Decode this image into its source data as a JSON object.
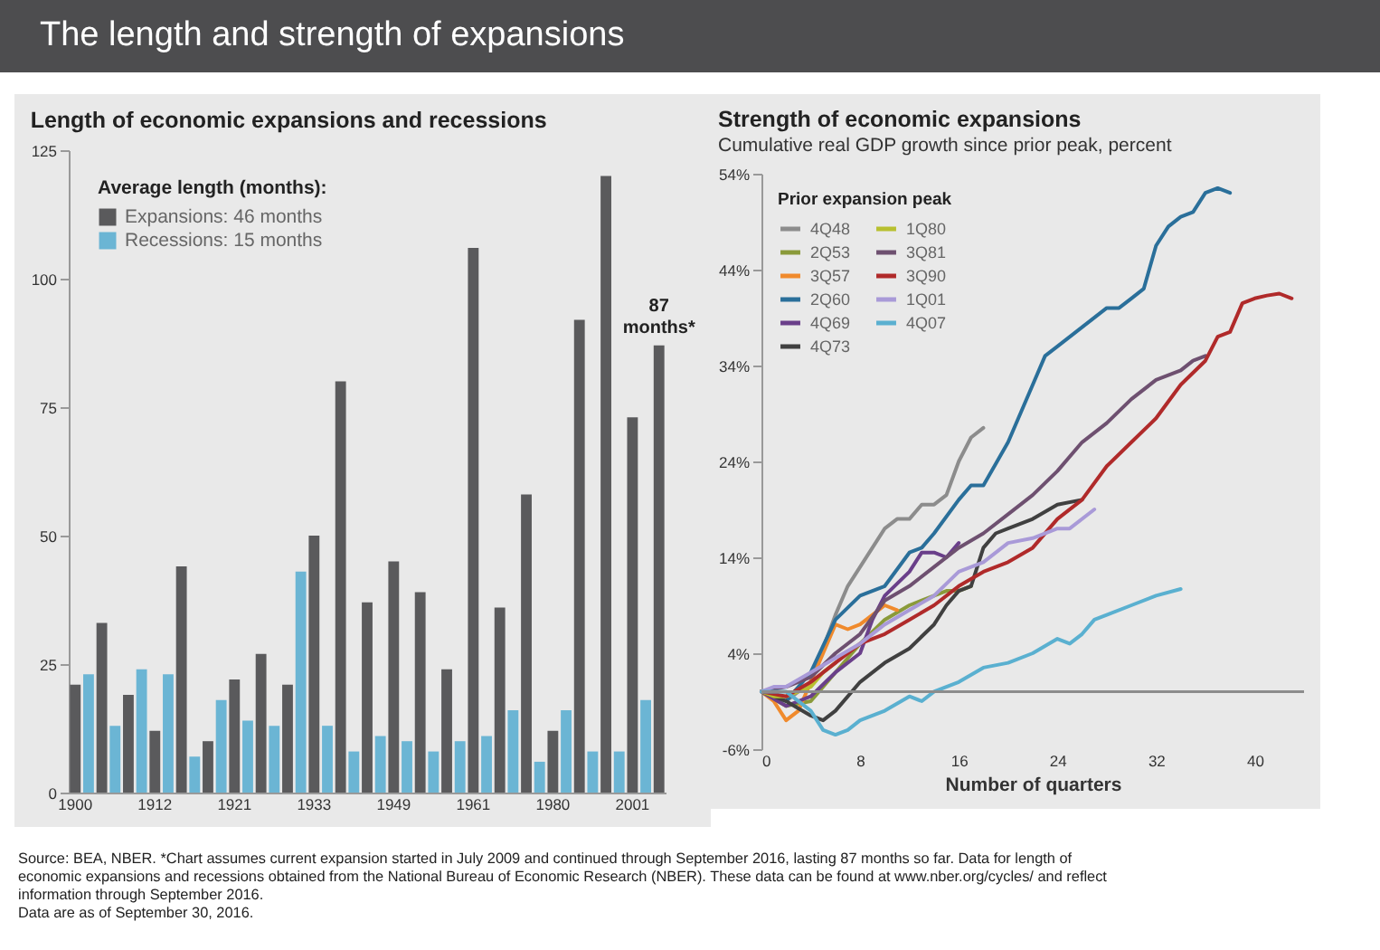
{
  "chart_data": [
    {
      "type": "other",
      "title": "The length and strength of expansions",
      "annotations": [
        "Source: BEA, NBER. *Chart assumes current expansion started in July 2009 and continued through September 2016, lasting 87 months so far. Data for length of economic expansions and recessions obtained from the National Bureau of Economic Research (NBER). These data can be found at www.nber.org/cycles/ and reflect information through September 2016.",
        "Data are as of September 30, 2016."
      ]
    },
    {
      "type": "bar",
      "title": "Length of economic expansions and recessions",
      "legend_title": "Average length (months):",
      "legend": "top left",
      "ylim": [
        0,
        125
      ],
      "yticks": [
        0,
        25,
        50,
        75,
        100,
        125
      ],
      "categories": [
        "1900",
        null,
        null,
        null,
        null,
        null,
        "1912",
        null,
        null,
        null,
        null,
        null,
        "1921",
        null,
        null,
        null,
        null,
        null,
        "1933",
        null,
        null,
        null,
        null,
        null,
        "1949",
        null,
        null,
        null,
        null,
        null,
        "1961",
        null,
        null,
        null,
        null,
        null,
        "1980",
        null,
        null,
        null,
        null,
        null,
        "2001",
        null,
        null
      ],
      "series": [
        {
          "name": "Expansions: 46 months",
          "color": "#5a5a5c",
          "values": [
            21,
            null,
            33,
            null,
            19,
            null,
            12,
            null,
            44,
            null,
            10,
            null,
            22,
            null,
            27,
            null,
            21,
            null,
            50,
            null,
            80,
            null,
            37,
            null,
            45,
            null,
            39,
            null,
            24,
            null,
            106,
            null,
            36,
            null,
            58,
            null,
            12,
            null,
            92,
            null,
            120,
            null,
            73,
            null,
            87
          ]
        },
        {
          "name": "Recessions: 15 months",
          "color": "#6bb5d4",
          "values": [
            null,
            23,
            null,
            13,
            null,
            24,
            null,
            23,
            null,
            7,
            null,
            18,
            null,
            14,
            null,
            13,
            null,
            43,
            null,
            13,
            null,
            8,
            null,
            11,
            null,
            10,
            null,
            8,
            null,
            10,
            null,
            11,
            null,
            16,
            null,
            6,
            null,
            16,
            null,
            8,
            null,
            8,
            null,
            18,
            null
          ]
        }
      ],
      "annotations": [
        {
          "text": "87 months*",
          "y": 87
        }
      ]
    },
    {
      "type": "line",
      "title": "Strength of economic expansions",
      "subtitle": "Cumulative real GDP growth since prior peak, percent",
      "xlabel": "Number of quarters",
      "legend_title": "Prior expansion peak",
      "legend": "top left",
      "line_style": "solid",
      "xlim": [
        0,
        44
      ],
      "xticks": [
        0,
        8,
        16,
        24,
        32,
        40
      ],
      "ylim": [
        -6,
        54
      ],
      "yticks": [
        {
          "value": -6,
          "label": "-6%"
        },
        {
          "value": 4,
          "label": "4%"
        },
        {
          "value": 14,
          "label": "14%"
        },
        {
          "value": 24,
          "label": "24%"
        },
        {
          "value": 34,
          "label": "34%"
        },
        {
          "value": 44,
          "label": "44%"
        },
        {
          "value": 54,
          "label": "54%"
        }
      ],
      "ref_lines": [
        {
          "axis": "y",
          "value": 0,
          "color": "#8c8c8c"
        }
      ],
      "series": [
        {
          "name": "4Q48",
          "color": "#8c8c8c",
          "x": [
            0,
            2,
            4,
            6,
            7,
            8,
            10,
            11,
            12,
            13,
            14,
            15,
            16,
            17,
            18
          ],
          "values": [
            0,
            -1,
            1,
            8,
            11,
            13,
            17,
            18,
            18,
            19.5,
            19.5,
            20.5,
            24,
            26.5,
            27.5
          ]
        },
        {
          "name": "2Q53",
          "color": "#8a9a3a",
          "x": [
            0,
            2,
            4,
            6,
            8,
            10,
            12,
            14,
            15,
            16,
            17
          ],
          "values": [
            0,
            -1.5,
            -1,
            2,
            5,
            7.5,
            9,
            10,
            10.5,
            10.5,
            11
          ]
        },
        {
          "name": "3Q57",
          "color": "#f08a2c",
          "x": [
            0,
            1,
            2,
            3,
            4,
            5,
            6,
            7,
            8,
            9,
            10,
            11
          ],
          "values": [
            0,
            -1,
            -3,
            -2,
            1,
            4,
            7,
            6.5,
            7,
            8,
            9,
            8.5
          ]
        },
        {
          "name": "2Q60",
          "color": "#2a6f9a",
          "x": [
            0,
            2,
            4,
            6,
            8,
            9,
            10,
            12,
            13,
            14,
            16,
            17,
            18,
            20,
            22,
            23,
            24,
            26,
            28,
            29,
            30,
            31,
            32,
            33,
            34,
            35,
            36,
            37,
            38
          ],
          "values": [
            0,
            -1,
            2,
            7.5,
            10,
            10.5,
            11,
            14.5,
            15,
            16.5,
            20,
            21.5,
            21.5,
            26,
            32,
            35,
            36,
            38,
            40,
            40,
            41,
            42,
            46.5,
            48.5,
            49.5,
            50,
            52,
            52.5,
            52
          ]
        },
        {
          "name": "4Q69",
          "color": "#6a3f8a",
          "x": [
            0,
            2,
            3,
            4,
            6,
            8,
            9,
            10,
            12,
            13,
            14,
            15,
            16
          ],
          "values": [
            0,
            -1.5,
            -1,
            -0.5,
            2,
            4,
            7.5,
            10,
            12.5,
            14.5,
            14.5,
            14,
            15.5
          ]
        },
        {
          "name": "4Q73",
          "color": "#404040",
          "x": [
            0,
            2,
            4,
            5,
            6,
            8,
            10,
            12,
            14,
            15,
            16,
            17,
            18,
            19,
            20,
            22,
            24,
            26
          ],
          "values": [
            0,
            -1,
            -2.5,
            -3,
            -2,
            1,
            3,
            4.5,
            7,
            9,
            10.5,
            11,
            15,
            16.5,
            17,
            18,
            19.5,
            20
          ]
        },
        {
          "name": "1Q80",
          "color": "#b8c030",
          "x": [
            0,
            1,
            2,
            3,
            4,
            5,
            6
          ],
          "values": [
            0,
            -0.5,
            -0.5,
            0,
            0.5,
            2,
            3
          ]
        },
        {
          "name": "3Q81",
          "color": "#6e5070",
          "x": [
            0,
            2,
            4,
            6,
            8,
            10,
            12,
            14,
            16,
            18,
            20,
            22,
            24,
            26,
            28,
            30,
            32,
            34,
            35,
            36
          ],
          "values": [
            0,
            0.5,
            1.5,
            4,
            6,
            9.5,
            11,
            13,
            15,
            16.5,
            18.5,
            20.5,
            23,
            26,
            28,
            30.5,
            32.5,
            33.5,
            34.5,
            35
          ]
        },
        {
          "name": "3Q90",
          "color": "#b02a2a",
          "x": [
            0,
            2,
            4,
            6,
            8,
            10,
            12,
            14,
            16,
            18,
            20,
            22,
            24,
            26,
            28,
            30,
            32,
            34,
            36,
            37,
            38,
            39,
            40,
            41,
            42,
            43
          ],
          "values": [
            0,
            -0.5,
            1,
            3,
            5,
            6,
            7.5,
            9,
            11,
            12.5,
            13.5,
            15,
            18,
            20,
            23.5,
            26,
            28.5,
            32,
            34.5,
            37,
            37.5,
            40.5,
            41,
            41.3,
            41.5,
            41
          ]
        },
        {
          "name": "1Q01",
          "color": "#a99ad8",
          "x": [
            0,
            1,
            2,
            4,
            6,
            8,
            10,
            12,
            14,
            16,
            18,
            20,
            22,
            24,
            25,
            27
          ],
          "values": [
            0,
            0.5,
            0.5,
            2,
            3.5,
            5,
            7,
            8.5,
            10,
            12.5,
            13.5,
            15.5,
            16,
            17,
            17,
            19
          ]
        },
        {
          "name": "4Q07",
          "color": "#5ab0d0",
          "x": [
            0,
            2,
            4,
            5,
            6,
            7,
            8,
            10,
            12,
            13,
            14,
            16,
            18,
            20,
            22,
            24,
            25,
            26,
            27,
            28,
            30,
            32,
            34
          ],
          "values": [
            0,
            0,
            -2,
            -4,
            -4.5,
            -4,
            -3,
            -2,
            -0.5,
            -1,
            0,
            1,
            2.5,
            3,
            4,
            5.5,
            5,
            6,
            7.5,
            8,
            9,
            10,
            10.7
          ]
        }
      ]
    }
  ]
}
